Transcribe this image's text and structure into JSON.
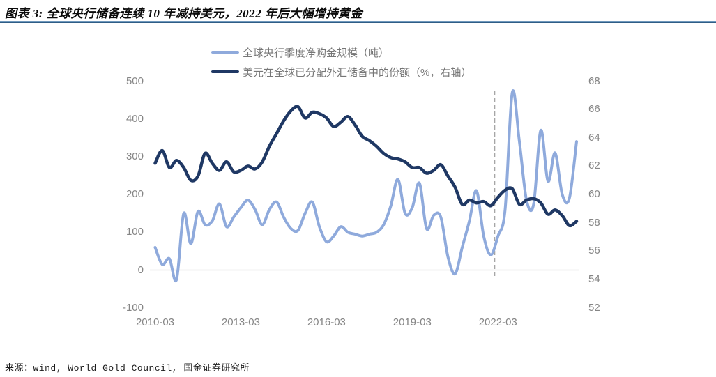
{
  "header": {
    "title": "图表 3: 全球央行储备连续 10 年减持美元，2022 年后大幅增持黄金"
  },
  "source": {
    "label": "来源：wind, World Gold Council, 国金证券研究所"
  },
  "chart_data": {
    "type": "line",
    "title": "图表 3: 全球央行储备连续 10 年减持美元，2022 年后大幅增持黄金",
    "legend_position": "top-center",
    "grid": "zero-line-only",
    "legend": [
      {
        "label": "全球央行季度净购金规模（吨）",
        "color": "#8faadc",
        "axis": "left"
      },
      {
        "label": "美元在全球已分配外汇储备中的份额（%，右轴）",
        "color": "#1f3864",
        "axis": "right"
      }
    ],
    "colors": {
      "gold_line": "#8faadc",
      "usd_line": "#1f3864",
      "zero_gridline": "#e2e2e2",
      "dashed_vline": "#a6a6a6",
      "axis_text": "#858585"
    },
    "x": [
      "2010-03",
      "2010-06",
      "2010-09",
      "2010-12",
      "2011-03",
      "2011-06",
      "2011-09",
      "2011-12",
      "2012-03",
      "2012-06",
      "2012-09",
      "2012-12",
      "2013-03",
      "2013-06",
      "2013-09",
      "2013-12",
      "2014-03",
      "2014-06",
      "2014-09",
      "2014-12",
      "2015-03",
      "2015-06",
      "2015-09",
      "2015-12",
      "2016-03",
      "2016-06",
      "2016-09",
      "2016-12",
      "2017-03",
      "2017-06",
      "2017-09",
      "2017-12",
      "2018-03",
      "2018-06",
      "2018-09",
      "2018-12",
      "2019-03",
      "2019-06",
      "2019-09",
      "2019-12",
      "2020-03",
      "2020-06",
      "2020-09",
      "2020-12",
      "2021-03",
      "2021-06",
      "2021-09",
      "2021-12",
      "2022-03",
      "2022-06",
      "2022-09",
      "2022-12",
      "2023-03",
      "2023-06",
      "2023-09",
      "2023-12",
      "2024-03",
      "2024-06",
      "2024-09",
      "2024-12"
    ],
    "x_tick_labels": [
      "2010-03",
      "2013-03",
      "2016-03",
      "2019-03",
      "2022-03"
    ],
    "x_tick_indexes": [
      0,
      12,
      24,
      36,
      48
    ],
    "series": [
      {
        "name": "全球央行季度净购金规模（吨）",
        "axis": "left",
        "values": [
          60,
          15,
          30,
          -25,
          150,
          70,
          155,
          120,
          130,
          175,
          115,
          140,
          165,
          185,
          160,
          120,
          160,
          180,
          140,
          110,
          105,
          150,
          180,
          115,
          75,
          90,
          115,
          100,
          95,
          90,
          95,
          100,
          120,
          170,
          240,
          150,
          165,
          230,
          110,
          145,
          140,
          35,
          -10,
          60,
          130,
          210,
          90,
          40,
          90,
          160,
          470,
          340,
          185,
          175,
          370,
          235,
          310,
          200,
          190,
          340
        ]
      },
      {
        "name": "美元在全球已分配外汇储备中的份额（%，右轴）",
        "axis": "right",
        "values": [
          62.2,
          63.1,
          61.9,
          62.4,
          61.9,
          61.0,
          61.3,
          62.9,
          62.2,
          61.7,
          62.3,
          61.6,
          61.7,
          62.0,
          61.8,
          62.3,
          63.4,
          64.3,
          65.2,
          65.9,
          66.2,
          65.4,
          65.8,
          65.7,
          65.4,
          64.8,
          65.1,
          65.5,
          64.9,
          64.1,
          63.8,
          63.4,
          62.9,
          62.6,
          62.5,
          62.3,
          61.9,
          61.9,
          61.5,
          61.7,
          62.1,
          61.3,
          60.5,
          59.3,
          59.6,
          59.4,
          59.5,
          59.2,
          59.8,
          60.3,
          60.4,
          59.3,
          59.6,
          59.7,
          59.4,
          58.6,
          58.9,
          58.5,
          57.8,
          58.1
        ]
      }
    ],
    "left_axis": {
      "ticks": [
        500,
        400,
        300,
        200,
        100,
        0,
        -100
      ],
      "range": [
        -100,
        500
      ],
      "label": "吨"
    },
    "right_axis": {
      "ticks": [
        68,
        66,
        64,
        62,
        60,
        58,
        56,
        54,
        52
      ],
      "range": [
        52,
        68
      ],
      "label": "%"
    },
    "annotations": {
      "dashed_vline_label": "2022-03"
    }
  }
}
